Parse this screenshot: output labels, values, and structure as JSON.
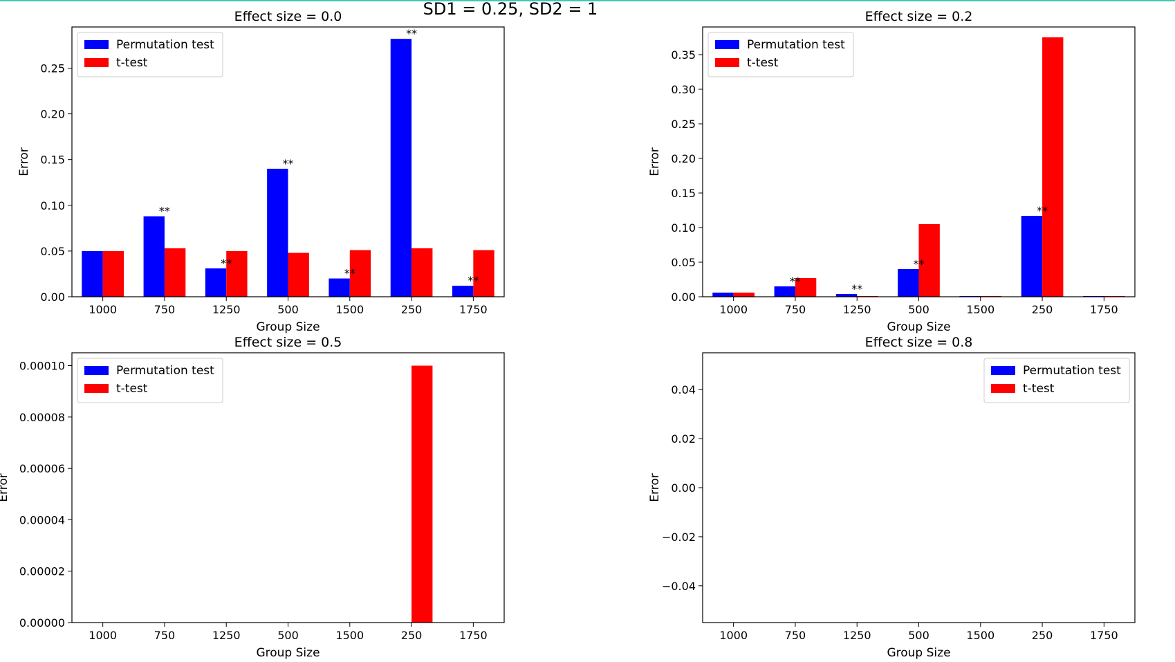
{
  "figure": {
    "suptitle": "SD1 = 0.25, SD2 = 1"
  },
  "colors": {
    "permutation": "#0000ff",
    "ttest": "#ff0000",
    "accent_line": "#3cc8b4"
  },
  "chart_data": [
    {
      "type": "bar",
      "title": "Effect size = 0.0",
      "xlabel": "Group Size",
      "ylabel": "Error",
      "categories": [
        "1000",
        "750",
        "1250",
        "500",
        "1500",
        "250",
        "1750"
      ],
      "ylim": [
        0,
        0.295
      ],
      "yticks": [
        "0.00",
        "0.05",
        "0.10",
        "0.15",
        "0.20",
        "0.25"
      ],
      "ytick_values": [
        0,
        0.05,
        0.1,
        0.15,
        0.2,
        0.25
      ],
      "legend": "upper left",
      "series": [
        {
          "name": "Permutation test",
          "color": "#0000ff",
          "values": [
            0.05,
            0.088,
            0.031,
            0.14,
            0.02,
            0.282,
            0.012
          ]
        },
        {
          "name": "t-test",
          "color": "#ff0000",
          "values": [
            0.05,
            0.053,
            0.05,
            0.048,
            0.051,
            0.053,
            0.051
          ]
        }
      ],
      "annotations": [
        {
          "category": "750",
          "text": "**"
        },
        {
          "category": "1250",
          "text": "**"
        },
        {
          "category": "500",
          "text": "**"
        },
        {
          "category": "1500",
          "text": "**"
        },
        {
          "category": "250",
          "text": "**"
        },
        {
          "category": "1750",
          "text": "**"
        }
      ]
    },
    {
      "type": "bar",
      "title": "Effect size = 0.2",
      "xlabel": "Group Size",
      "ylabel": "Error",
      "categories": [
        "1000",
        "750",
        "1250",
        "500",
        "1500",
        "250",
        "1750"
      ],
      "ylim": [
        0,
        0.39
      ],
      "yticks": [
        "0.00",
        "0.05",
        "0.10",
        "0.15",
        "0.20",
        "0.25",
        "0.30",
        "0.35"
      ],
      "ytick_values": [
        0,
        0.05,
        0.1,
        0.15,
        0.2,
        0.25,
        0.3,
        0.35
      ],
      "legend": "upper left",
      "series": [
        {
          "name": "Permutation test",
          "color": "#0000ff",
          "values": [
            0.006,
            0.015,
            0.004,
            0.04,
            0.001,
            0.117,
            0.001
          ]
        },
        {
          "name": "t-test",
          "color": "#ff0000",
          "values": [
            0.006,
            0.027,
            0.001,
            0.105,
            0.001,
            0.375,
            0.001
          ]
        }
      ],
      "annotations": [
        {
          "category": "750",
          "text": "**"
        },
        {
          "category": "1250",
          "text": "**"
        },
        {
          "category": "500",
          "text": "**"
        },
        {
          "category": "250",
          "text": "**"
        }
      ]
    },
    {
      "type": "bar",
      "title": "Effect size = 0.5",
      "xlabel": "Group Size",
      "ylabel": "Error",
      "categories": [
        "1000",
        "750",
        "1250",
        "500",
        "1500",
        "250",
        "1750"
      ],
      "ylim": [
        0,
        0.000105
      ],
      "yticks": [
        "0.00000",
        "0.00002",
        "0.00004",
        "0.00006",
        "0.00008",
        "0.00010"
      ],
      "ytick_values": [
        0,
        2e-05,
        4e-05,
        6e-05,
        8e-05,
        0.0001
      ],
      "legend": "upper left",
      "series": [
        {
          "name": "Permutation test",
          "color": "#0000ff",
          "values": [
            0,
            0,
            0,
            0,
            0,
            0,
            0
          ]
        },
        {
          "name": "t-test",
          "color": "#ff0000",
          "values": [
            0,
            0,
            0,
            0,
            0,
            0.0001,
            0
          ]
        }
      ],
      "annotations": []
    },
    {
      "type": "bar",
      "title": "Effect size = 0.8",
      "xlabel": "Group Size",
      "ylabel": "Error",
      "categories": [
        "1000",
        "750",
        "1250",
        "500",
        "1500",
        "250",
        "1750"
      ],
      "ylim": [
        -0.055,
        0.055
      ],
      "yticks": [
        "−0.04",
        "−0.02",
        "0.00",
        "0.02",
        "0.04"
      ],
      "ytick_values": [
        -0.04,
        -0.02,
        0,
        0.02,
        0.04
      ],
      "legend": "upper right",
      "series": [
        {
          "name": "Permutation test",
          "color": "#0000ff",
          "values": [
            0,
            0,
            0,
            0,
            0,
            0,
            0
          ]
        },
        {
          "name": "t-test",
          "color": "#ff0000",
          "values": [
            0,
            0,
            0,
            0,
            0,
            0,
            0
          ]
        }
      ],
      "annotations": []
    }
  ]
}
